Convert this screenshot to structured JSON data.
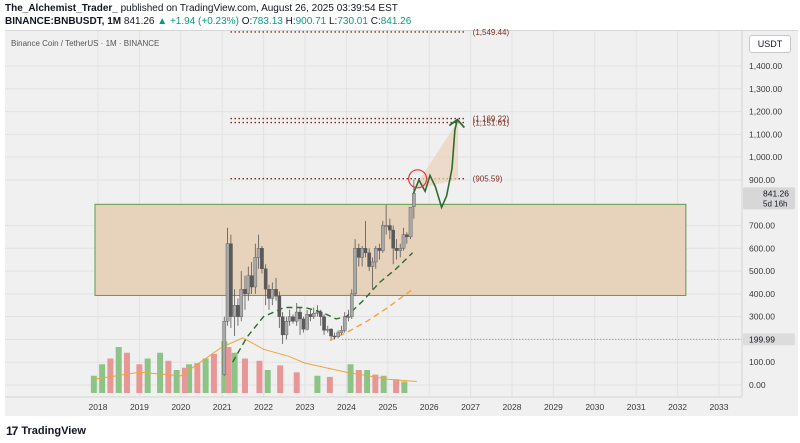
{
  "header": {
    "author": "The_Alchemist_Trader_",
    "published_text": "published on TradingView.com, August 26, 2025 03:39:54 EST",
    "symbol": "BINANCE:BNBUSDT, 1M",
    "last": "841.26",
    "change": "▲ +1.94 (+0.23%)",
    "open_label": "O:",
    "open": "783.13",
    "high_label": "H:",
    "high": "900.71",
    "low_label": "L:",
    "low": "730.01",
    "close_label": "C:",
    "close": "841.26"
  },
  "symbol_title": "Binance Coin / TetherUS · 1M · BINANCE",
  "currency_button": "USDT",
  "footer": {
    "logo_text": "TradingView",
    "logo_glyph": "17"
  },
  "colors": {
    "bull": "#5a5a5a",
    "bear": "#a8a8a8",
    "zone_fill": "#e7d3bc",
    "zone_line": "#5e9c4a",
    "projection": "#2e6b2e",
    "ema_dashed": "#2e6b2e",
    "ema_orange": "#f2a33a",
    "level_dots": "#7a2d1e",
    "volume_green": "#8cc487",
    "volume_red": "#e79796",
    "circle": "#e03a3a"
  },
  "chart_data": {
    "type": "candlestick",
    "x_tick_labels": [
      "2018",
      "2019",
      "2020",
      "2021",
      "2022",
      "2023",
      "2024",
      "2025",
      "2026",
      "2027",
      "2028",
      "2029",
      "2030",
      "2031",
      "2032",
      "2033"
    ],
    "y_tick_labels": [
      "1,400.00",
      "1,300.00",
      "1,200.00",
      "1,100.00",
      "1,000.00",
      "900.00",
      "700.00",
      "600.00",
      "500.00",
      "400.00",
      "300.00",
      "200.00",
      "100.00",
      "0.00"
    ],
    "y_ticks": [
      1400,
      1300,
      1200,
      1100,
      1000,
      900,
      700,
      600,
      500,
      400,
      300,
      200,
      100,
      0
    ],
    "ylim": [
      -50,
      1500
    ],
    "current_price": {
      "label": "841.26",
      "countdown": "5d 16h",
      "value": 841.26
    },
    "price_marker": {
      "label": "199.99",
      "value": 199.99
    },
    "levels": [
      {
        "label": "(1,549.44)",
        "value": 1549.44
      },
      {
        "label": "(1,169.22)",
        "value": 1169.22
      },
      {
        "label": "(1,151.61)",
        "value": 1151.61
      },
      {
        "label": "(905.59)",
        "value": 905.59
      }
    ],
    "zone": {
      "top": 793,
      "bottom": 393
    },
    "candles": [
      [
        2021.05,
        45,
        300,
        40,
        280
      ],
      [
        2021.13,
        280,
        690,
        260,
        620
      ],
      [
        2021.21,
        620,
        660,
        250,
        300
      ],
      [
        2021.3,
        300,
        420,
        215,
        350
      ],
      [
        2021.38,
        350,
        380,
        260,
        300
      ],
      [
        2021.46,
        300,
        500,
        280,
        420
      ],
      [
        2021.55,
        420,
        480,
        330,
        400
      ],
      [
        2021.63,
        400,
        520,
        370,
        480
      ],
      [
        2021.71,
        480,
        540,
        400,
        430
      ],
      [
        2021.8,
        430,
        620,
        400,
        560
      ],
      [
        2021.88,
        560,
        660,
        510,
        600
      ],
      [
        2021.96,
        600,
        610,
        490,
        510
      ],
      [
        2022.05,
        510,
        530,
        350,
        420
      ],
      [
        2022.13,
        420,
        440,
        330,
        380
      ],
      [
        2022.21,
        380,
        450,
        350,
        420
      ],
      [
        2022.3,
        420,
        470,
        370,
        390
      ],
      [
        2022.38,
        390,
        410,
        250,
        300
      ],
      [
        2022.46,
        300,
        320,
        180,
        220
      ],
      [
        2022.55,
        220,
        300,
        200,
        280
      ],
      [
        2022.63,
        280,
        330,
        260,
        300
      ],
      [
        2022.71,
        300,
        310,
        270,
        280
      ],
      [
        2022.8,
        280,
        360,
        260,
        320
      ],
      [
        2022.88,
        320,
        340,
        220,
        290
      ],
      [
        2022.96,
        290,
        300,
        230,
        245
      ],
      [
        2023.05,
        245,
        330,
        240,
        310
      ],
      [
        2023.13,
        310,
        330,
        280,
        300
      ],
      [
        2023.21,
        300,
        340,
        290,
        315
      ],
      [
        2023.3,
        315,
        350,
        300,
        320
      ],
      [
        2023.38,
        320,
        330,
        260,
        300
      ],
      [
        2023.46,
        300,
        310,
        220,
        240
      ],
      [
        2023.55,
        240,
        260,
        230,
        245
      ],
      [
        2023.63,
        245,
        250,
        200,
        215
      ],
      [
        2023.71,
        215,
        230,
        200,
        212
      ],
      [
        2023.8,
        212,
        240,
        205,
        230
      ],
      [
        2023.88,
        230,
        260,
        220,
        240
      ],
      [
        2023.96,
        240,
        320,
        230,
        300
      ],
      [
        2024.05,
        300,
        330,
        280,
        300
      ],
      [
        2024.13,
        300,
        420,
        290,
        400
      ],
      [
        2024.21,
        400,
        640,
        390,
        600
      ],
      [
        2024.3,
        600,
        620,
        520,
        560
      ],
      [
        2024.38,
        560,
        610,
        520,
        600
      ],
      [
        2024.46,
        600,
        720,
        560,
        580
      ],
      [
        2024.55,
        580,
        600,
        500,
        520
      ],
      [
        2024.63,
        520,
        560,
        420,
        540
      ],
      [
        2024.71,
        540,
        610,
        510,
        600
      ],
      [
        2024.8,
        600,
        620,
        550,
        590
      ],
      [
        2024.88,
        590,
        720,
        580,
        700
      ],
      [
        2024.96,
        700,
        790,
        660,
        700
      ],
      [
        2025.05,
        700,
        730,
        640,
        680
      ],
      [
        2025.13,
        680,
        700,
        530,
        600
      ],
      [
        2025.21,
        600,
        640,
        550,
        590
      ],
      [
        2025.3,
        590,
        620,
        560,
        600
      ],
      [
        2025.38,
        600,
        690,
        590,
        660
      ],
      [
        2025.46,
        660,
        670,
        620,
        650
      ],
      [
        2025.55,
        650,
        780,
        640,
        780
      ],
      [
        2025.63,
        783.13,
        900.71,
        730.01,
        841.26
      ]
    ],
    "ema_green_dashed": [
      [
        2021.25,
        100
      ],
      [
        2021.6,
        210
      ],
      [
        2022.0,
        300
      ],
      [
        2022.5,
        340
      ],
      [
        2023.0,
        340
      ],
      [
        2023.4,
        320
      ],
      [
        2023.75,
        290
      ],
      [
        2024.0,
        300
      ],
      [
        2024.4,
        370
      ],
      [
        2024.8,
        450
      ],
      [
        2025.2,
        510
      ],
      [
        2025.6,
        580
      ]
    ],
    "ema_orange_dashed": [
      [
        2023.6,
        195
      ],
      [
        2024.0,
        230
      ],
      [
        2024.5,
        280
      ],
      [
        2025.0,
        340
      ],
      [
        2025.6,
        420
      ]
    ],
    "projection_path": [
      [
        2025.62,
        841
      ],
      [
        2025.75,
        900
      ],
      [
        2025.9,
        850
      ],
      [
        2026.02,
        920
      ],
      [
        2026.15,
        870
      ],
      [
        2026.3,
        780
      ],
      [
        2026.42,
        830
      ],
      [
        2026.55,
        950
      ],
      [
        2026.62,
        1120
      ],
      [
        2026.68,
        1165
      ]
    ],
    "volume_green": [
      [
        2017.9,
        15
      ],
      [
        2018.1,
        25
      ],
      [
        2018.5,
        40
      ],
      [
        2019.2,
        30
      ],
      [
        2019.5,
        35
      ],
      [
        2019.9,
        20
      ],
      [
        2020.2,
        25
      ],
      [
        2020.6,
        30
      ],
      [
        2021.05,
        45
      ],
      [
        2021.3,
        35
      ],
      [
        2022.1,
        20
      ],
      [
        2023.3,
        15
      ],
      [
        2024.1,
        25
      ],
      [
        2024.5,
        20
      ],
      [
        2024.9,
        15
      ],
      [
        2025.4,
        10
      ]
    ],
    "volume_red": [
      [
        2018.3,
        30
      ],
      [
        2018.7,
        35
      ],
      [
        2019.0,
        25
      ],
      [
        2019.7,
        28
      ],
      [
        2020.1,
        22
      ],
      [
        2020.4,
        26
      ],
      [
        2020.8,
        34
      ],
      [
        2021.15,
        40
      ],
      [
        2021.55,
        30
      ],
      [
        2021.9,
        28
      ],
      [
        2022.4,
        24
      ],
      [
        2022.8,
        18
      ],
      [
        2023.6,
        14
      ],
      [
        2024.3,
        20
      ],
      [
        2024.7,
        16
      ],
      [
        2025.2,
        12
      ]
    ],
    "volume_line": [
      [
        2017.9,
        12
      ],
      [
        2019.0,
        18
      ],
      [
        2020.0,
        15
      ],
      [
        2021.0,
        40
      ],
      [
        2021.5,
        48
      ],
      [
        2022.0,
        38
      ],
      [
        2022.6,
        32
      ],
      [
        2023.0,
        26
      ],
      [
        2024.0,
        18
      ],
      [
        2025.0,
        12
      ],
      [
        2025.7,
        10
      ]
    ]
  }
}
